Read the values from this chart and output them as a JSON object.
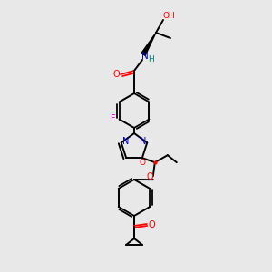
{
  "bg_color": "#e8e8e8",
  "bond_color": "#000000",
  "atom_colors": {
    "O": "#ff0000",
    "N": "#0000cc",
    "F": "#cc00cc",
    "H": "#008080",
    "C": "#000000"
  },
  "figsize": [
    3.0,
    3.0
  ],
  "dpi": 100
}
